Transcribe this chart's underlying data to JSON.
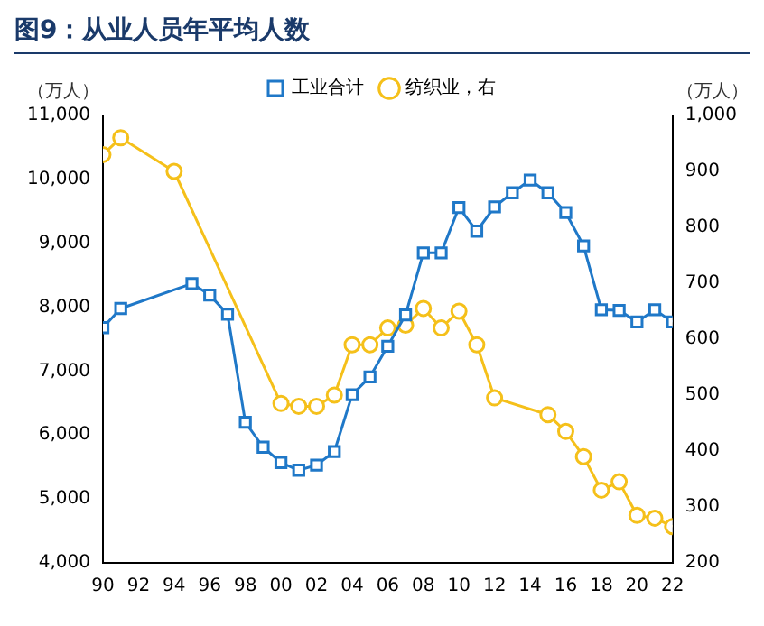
{
  "chart_data": {
    "type": "line",
    "title": "图9：从业人员年平均人数",
    "ylabel": "（万人）",
    "y2label": "（万人）",
    "xlim": [
      1990,
      2022
    ],
    "xticks": [
      {
        "value": 1990,
        "label": "90"
      },
      {
        "value": 1992,
        "label": "92"
      },
      {
        "value": 1994,
        "label": "94"
      },
      {
        "value": 1996,
        "label": "96"
      },
      {
        "value": 1998,
        "label": "98"
      },
      {
        "value": 2000,
        "label": "00"
      },
      {
        "value": 2002,
        "label": "02"
      },
      {
        "value": 2004,
        "label": "04"
      },
      {
        "value": 2006,
        "label": "06"
      },
      {
        "value": 2008,
        "label": "08"
      },
      {
        "value": 2010,
        "label": "10"
      },
      {
        "value": 2012,
        "label": "12"
      },
      {
        "value": 2014,
        "label": "14"
      },
      {
        "value": 2016,
        "label": "16"
      },
      {
        "value": 2018,
        "label": "18"
      },
      {
        "value": 2020,
        "label": "20"
      },
      {
        "value": 2022,
        "label": "22"
      }
    ],
    "ylim": [
      4000,
      11000
    ],
    "yticks": [
      {
        "value": 4000,
        "label": "4,000"
      },
      {
        "value": 5000,
        "label": "5,000"
      },
      {
        "value": 6000,
        "label": "6,000"
      },
      {
        "value": 7000,
        "label": "7,000"
      },
      {
        "value": 8000,
        "label": "8,000"
      },
      {
        "value": 9000,
        "label": "9,000"
      },
      {
        "value": 10000,
        "label": "10,000"
      },
      {
        "value": 11000,
        "label": "11,000"
      }
    ],
    "y2lim": [
      200,
      1000
    ],
    "y2ticks": [
      200,
      300,
      400,
      500,
      600,
      700,
      800,
      900,
      {
        "value": 1000,
        "label": "1,000"
      }
    ],
    "grid": false,
    "legend": "top",
    "line_style": "solid",
    "series": [
      {
        "name": "工业合计",
        "color": "#1f78c8",
        "marker": "square",
        "x": [
          1990,
          1991,
          1995,
          1996,
          1997,
          1998,
          1999,
          2000,
          2001,
          2002,
          2003,
          2004,
          2005,
          2006,
          2007,
          2008,
          2009,
          2010,
          2011,
          2012,
          2013,
          2014,
          2015,
          2016,
          2017,
          2018,
          2019,
          2020,
          2021,
          2022
        ],
        "values": [
          7680,
          7980,
          8370,
          8190,
          7890,
          6200,
          5810,
          5570,
          5450,
          5530,
          5740,
          6630,
          6910,
          7390,
          7880,
          8850,
          8850,
          9560,
          9190,
          9570,
          9790,
          9990,
          9790,
          9480,
          8960,
          7960,
          7950,
          7770,
          7960,
          7770
        ]
      },
      {
        "name": "纺织业，右",
        "color": "#f5c01a",
        "marker": "circle",
        "axis": "y2",
        "x": [
          1990,
          1991,
          1994,
          2000,
          2001,
          2002,
          2003,
          2004,
          2005,
          2006,
          2007,
          2008,
          2009,
          2010,
          2011,
          2012,
          2015,
          2016,
          2017,
          2018,
          2019,
          2020,
          2021,
          2022
        ],
        "values": [
          930,
          960,
          900,
          485,
          480,
          480,
          500,
          590,
          590,
          620,
          625,
          655,
          620,
          650,
          590,
          495,
          465,
          435,
          390,
          330,
          345,
          285,
          280,
          265
        ]
      }
    ]
  }
}
